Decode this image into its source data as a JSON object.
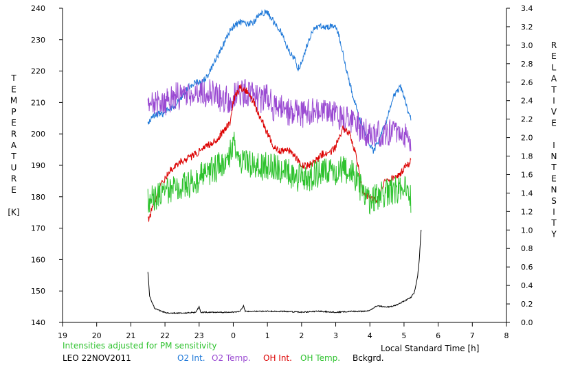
{
  "chart_data": {
    "type": "line",
    "xlabel": "Local Standard Time [h]",
    "ylabel_left": [
      "T",
      "E",
      "M",
      "P",
      "E",
      "R",
      "A",
      "T",
      "U",
      "R",
      "E",
      "",
      "[K]"
    ],
    "ylabel_right": [
      "R",
      "E",
      "L",
      "A",
      "T",
      "I",
      "V",
      "E",
      "",
      "I",
      "N",
      "T",
      "E",
      "N",
      "S",
      "I",
      "T",
      "Y"
    ],
    "note": "Intensities adjusted for PM sensitivity",
    "station": "LEO 22NOV2011",
    "x_ticks": [
      "19",
      "20",
      "21",
      "22",
      "23",
      "0",
      "1",
      "2",
      "3",
      "4",
      "5",
      "6",
      "7",
      "8"
    ],
    "x_range": [
      19,
      32
    ],
    "left_ticks": [
      "140",
      "150",
      "160",
      "170",
      "180",
      "190",
      "200",
      "210",
      "220",
      "230",
      "240"
    ],
    "left_range": [
      140,
      240
    ],
    "right_ticks": [
      "0.0",
      "0.2",
      "0.4",
      "0.6",
      "0.8",
      "1.0",
      "1.2",
      "1.4",
      "1.6",
      "1.8",
      "2.0",
      "2.2",
      "2.4",
      "2.6",
      "2.8",
      "3.0",
      "3.2",
      "3.4"
    ],
    "right_range": [
      0.0,
      3.4
    ],
    "grid": false,
    "legend_position": "bottom",
    "series": [
      {
        "name": "O2 Int.",
        "color": "#1e78d8",
        "axis": "right",
        "noise": 0.035,
        "points": [
          [
            21.5,
            2.15
          ],
          [
            21.7,
            2.25
          ],
          [
            21.9,
            2.25
          ],
          [
            22.1,
            2.3
          ],
          [
            22.3,
            2.35
          ],
          [
            22.5,
            2.45
          ],
          [
            22.7,
            2.55
          ],
          [
            22.9,
            2.6
          ],
          [
            23.1,
            2.6
          ],
          [
            23.3,
            2.7
          ],
          [
            23.5,
            2.85
          ],
          [
            23.7,
            3.0
          ],
          [
            23.9,
            3.15
          ],
          [
            24.0,
            3.2
          ],
          [
            24.2,
            3.25
          ],
          [
            24.4,
            3.22
          ],
          [
            24.6,
            3.25
          ],
          [
            24.8,
            3.35
          ],
          [
            25.0,
            3.35
          ],
          [
            25.2,
            3.25
          ],
          [
            25.4,
            3.15
          ],
          [
            25.6,
            2.95
          ],
          [
            25.8,
            2.85
          ],
          [
            25.9,
            2.75
          ],
          [
            26.0,
            2.8
          ],
          [
            26.2,
            3.05
          ],
          [
            26.4,
            3.2
          ],
          [
            26.6,
            3.2
          ],
          [
            26.8,
            3.2
          ],
          [
            27.0,
            3.2
          ],
          [
            27.1,
            3.1
          ],
          [
            27.3,
            2.75
          ],
          [
            27.5,
            2.45
          ],
          [
            27.7,
            2.2
          ],
          [
            27.9,
            2.0
          ],
          [
            28.1,
            1.85
          ],
          [
            28.3,
            2.0
          ],
          [
            28.5,
            2.2
          ],
          [
            28.7,
            2.45
          ],
          [
            28.9,
            2.55
          ],
          [
            29.0,
            2.45
          ],
          [
            29.1,
            2.3
          ],
          [
            29.2,
            2.2
          ]
        ]
      },
      {
        "name": "O2 Temp.",
        "color": "#9a4ad2",
        "axis": "left",
        "noise": 4.5,
        "points": [
          [
            21.5,
            208
          ],
          [
            21.7,
            211
          ],
          [
            21.9,
            209
          ],
          [
            22.1,
            211
          ],
          [
            22.3,
            212
          ],
          [
            22.5,
            212
          ],
          [
            22.7,
            212
          ],
          [
            22.9,
            213
          ],
          [
            23.1,
            213
          ],
          [
            23.3,
            213
          ],
          [
            23.5,
            212
          ],
          [
            23.7,
            211
          ],
          [
            23.9,
            211
          ],
          [
            24.0,
            213
          ],
          [
            24.2,
            213
          ],
          [
            24.4,
            213
          ],
          [
            24.6,
            213
          ],
          [
            24.8,
            211
          ],
          [
            25.0,
            212
          ],
          [
            25.2,
            208
          ],
          [
            25.4,
            208
          ],
          [
            25.6,
            207
          ],
          [
            25.8,
            207
          ],
          [
            26.0,
            206
          ],
          [
            26.2,
            207
          ],
          [
            26.4,
            207
          ],
          [
            26.6,
            207
          ],
          [
            26.8,
            206
          ],
          [
            27.0,
            206
          ],
          [
            27.2,
            205
          ],
          [
            27.4,
            204
          ],
          [
            27.6,
            203
          ],
          [
            27.8,
            201
          ],
          [
            28.0,
            200
          ],
          [
            28.2,
            200
          ],
          [
            28.4,
            200
          ],
          [
            28.6,
            201
          ],
          [
            28.8,
            201
          ],
          [
            29.0,
            200
          ],
          [
            29.2,
            194
          ]
        ]
      },
      {
        "name": "OH Int.",
        "color": "#dc0000",
        "axis": "right",
        "noise": 0.04,
        "points": [
          [
            21.5,
            1.1
          ],
          [
            21.7,
            1.3
          ],
          [
            21.9,
            1.5
          ],
          [
            22.1,
            1.62
          ],
          [
            22.3,
            1.7
          ],
          [
            22.5,
            1.75
          ],
          [
            22.7,
            1.78
          ],
          [
            22.9,
            1.82
          ],
          [
            23.1,
            1.87
          ],
          [
            23.3,
            1.93
          ],
          [
            23.5,
            1.97
          ],
          [
            23.7,
            2.07
          ],
          [
            23.9,
            2.15
          ],
          [
            24.0,
            2.4
          ],
          [
            24.2,
            2.55
          ],
          [
            24.4,
            2.5
          ],
          [
            24.6,
            2.38
          ],
          [
            24.8,
            2.2
          ],
          [
            25.0,
            2.05
          ],
          [
            25.2,
            1.9
          ],
          [
            25.4,
            1.85
          ],
          [
            25.6,
            1.87
          ],
          [
            25.8,
            1.8
          ],
          [
            26.0,
            1.7
          ],
          [
            26.2,
            1.7
          ],
          [
            26.4,
            1.74
          ],
          [
            26.6,
            1.82
          ],
          [
            26.8,
            1.82
          ],
          [
            27.0,
            1.9
          ],
          [
            27.2,
            2.1
          ],
          [
            27.4,
            2.05
          ],
          [
            27.6,
            1.8
          ],
          [
            27.8,
            1.4
          ],
          [
            28.0,
            1.35
          ],
          [
            28.2,
            1.3
          ],
          [
            28.4,
            1.5
          ],
          [
            28.6,
            1.55
          ],
          [
            28.8,
            1.57
          ],
          [
            29.0,
            1.67
          ],
          [
            29.2,
            1.74
          ]
        ]
      },
      {
        "name": "OH Temp.",
        "color": "#2ec22e",
        "axis": "left",
        "noise": 4.5,
        "points": [
          [
            21.5,
            178
          ],
          [
            21.7,
            180
          ],
          [
            21.9,
            181
          ],
          [
            22.1,
            182
          ],
          [
            22.3,
            183
          ],
          [
            22.5,
            183
          ],
          [
            22.7,
            184
          ],
          [
            22.9,
            185
          ],
          [
            23.1,
            187
          ],
          [
            23.3,
            188
          ],
          [
            23.5,
            189
          ],
          [
            23.7,
            191
          ],
          [
            23.9,
            194
          ],
          [
            24.0,
            198
          ],
          [
            24.2,
            192
          ],
          [
            24.4,
            191
          ],
          [
            24.6,
            190
          ],
          [
            24.8,
            189
          ],
          [
            25.0,
            190
          ],
          [
            25.2,
            190
          ],
          [
            25.4,
            188
          ],
          [
            25.6,
            188
          ],
          [
            25.8,
            186
          ],
          [
            26.0,
            186
          ],
          [
            26.2,
            186
          ],
          [
            26.4,
            187
          ],
          [
            26.6,
            188
          ],
          [
            26.8,
            188
          ],
          [
            27.0,
            188
          ],
          [
            27.2,
            189
          ],
          [
            27.4,
            188
          ],
          [
            27.6,
            186
          ],
          [
            27.8,
            181
          ],
          [
            28.0,
            178
          ],
          [
            28.2,
            180
          ],
          [
            28.4,
            181
          ],
          [
            28.6,
            182
          ],
          [
            28.8,
            182
          ],
          [
            29.0,
            185
          ],
          [
            29.2,
            179
          ]
        ]
      },
      {
        "name": "Bckgrd.",
        "color": "#000000",
        "axis": "right",
        "noise": 0.006,
        "points": [
          [
            21.5,
            0.55
          ],
          [
            21.55,
            0.28
          ],
          [
            21.62,
            0.22
          ],
          [
            21.7,
            0.15
          ],
          [
            21.9,
            0.12
          ],
          [
            22.1,
            0.1
          ],
          [
            22.5,
            0.1
          ],
          [
            22.9,
            0.11
          ],
          [
            23.0,
            0.17
          ],
          [
            23.05,
            0.11
          ],
          [
            23.3,
            0.11
          ],
          [
            24.0,
            0.11
          ],
          [
            24.2,
            0.12
          ],
          [
            24.3,
            0.18
          ],
          [
            24.35,
            0.12
          ],
          [
            24.8,
            0.12
          ],
          [
            25.5,
            0.12
          ],
          [
            26.0,
            0.11
          ],
          [
            26.5,
            0.12
          ],
          [
            27.0,
            0.11
          ],
          [
            27.5,
            0.12
          ],
          [
            27.8,
            0.12
          ],
          [
            28.0,
            0.13
          ],
          [
            28.2,
            0.18
          ],
          [
            28.4,
            0.17
          ],
          [
            28.6,
            0.17
          ],
          [
            28.8,
            0.19
          ],
          [
            29.0,
            0.23
          ],
          [
            29.2,
            0.27
          ],
          [
            29.3,
            0.32
          ],
          [
            29.4,
            0.5
          ],
          [
            29.45,
            0.7
          ],
          [
            29.5,
            1.0
          ]
        ]
      }
    ]
  }
}
